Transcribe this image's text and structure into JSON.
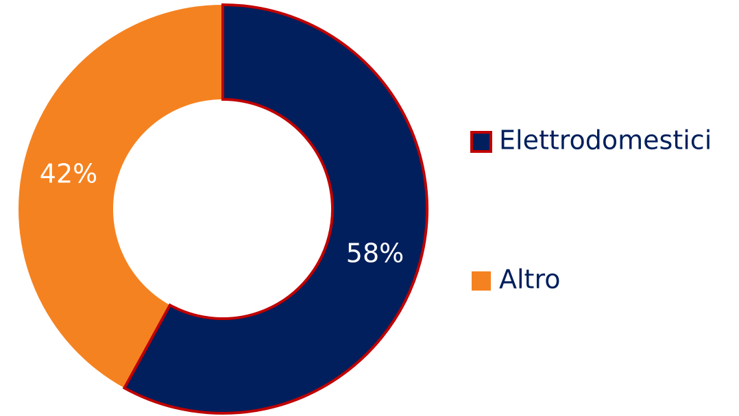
{
  "chart_data": {
    "type": "pie",
    "title": "",
    "legend_position": "right",
    "slices": [
      {
        "name": "Elettrodomestici",
        "value": 58,
        "label": "58%",
        "color": "#001f5c",
        "outline": "#c00000"
      },
      {
        "name": "Altro",
        "value": 42,
        "label": "42%",
        "color": "#f58220"
      }
    ],
    "label_color": "#ffffff",
    "legend_text_color": "#001f5c"
  }
}
